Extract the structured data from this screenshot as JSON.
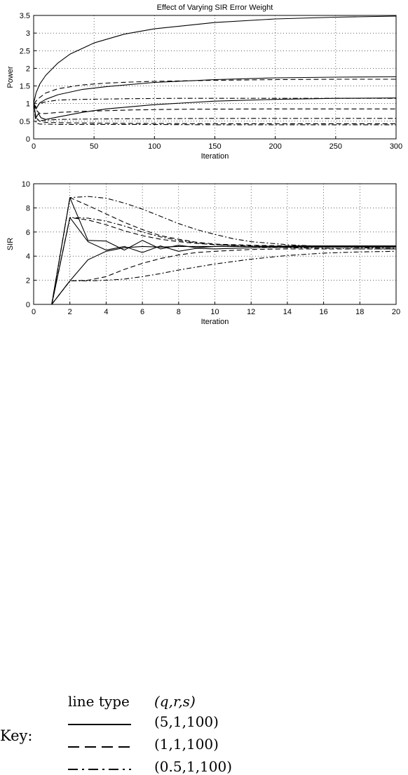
{
  "chart_data": [
    {
      "type": "line",
      "title": "Effect of Varying SIR Error Weight",
      "xlabel": "Iteration",
      "ylabel": "Power",
      "xlim": [
        0,
        300
      ],
      "ylim": [
        0,
        3.5
      ],
      "xticks": [
        "0",
        "50",
        "100",
        "150",
        "200",
        "250",
        "300"
      ],
      "yticks": [
        "0",
        "0.5",
        "1",
        "1.5",
        "2",
        "2.5",
        "3",
        "3.5"
      ],
      "xtick_values": [
        0,
        50,
        100,
        150,
        200,
        250,
        300
      ],
      "ytick_values": [
        0,
        0.5,
        1,
        1.5,
        2,
        2.5,
        3,
        3.5
      ],
      "grid": true,
      "series": [
        {
          "style": "solid",
          "x": [
            0,
            1,
            2,
            5,
            10,
            20,
            30,
            50,
            75,
            100,
            150,
            200,
            250,
            300
          ],
          "y": [
            1.0,
            1.15,
            1.3,
            1.55,
            1.8,
            2.15,
            2.4,
            2.72,
            2.97,
            3.12,
            3.3,
            3.4,
            3.45,
            3.48
          ]
        },
        {
          "style": "solid",
          "x": [
            0,
            2,
            5,
            10,
            20,
            40,
            60,
            100,
            150,
            200,
            250,
            300
          ],
          "y": [
            1.0,
            0.85,
            1.02,
            1.12,
            1.25,
            1.4,
            1.48,
            1.6,
            1.68,
            1.73,
            1.75,
            1.76
          ]
        },
        {
          "style": "solid",
          "x": [
            0,
            2,
            4,
            6,
            10,
            20,
            40,
            60,
            100,
            150,
            200,
            250,
            300
          ],
          "y": [
            1.0,
            0.6,
            0.72,
            0.6,
            0.55,
            0.62,
            0.75,
            0.85,
            0.97,
            1.07,
            1.12,
            1.15,
            1.16
          ]
        },
        {
          "style": "dashed",
          "x": [
            0,
            1,
            3,
            10,
            20,
            40,
            60,
            80,
            100,
            150,
            200,
            250,
            300
          ],
          "y": [
            1.0,
            1.02,
            1.12,
            1.3,
            1.42,
            1.53,
            1.58,
            1.61,
            1.63,
            1.66,
            1.68,
            1.69,
            1.69
          ]
        },
        {
          "style": "dashed",
          "x": [
            0,
            2,
            5,
            10,
            20,
            40,
            80,
            120,
            200,
            300
          ],
          "y": [
            1.0,
            0.82,
            0.72,
            0.72,
            0.75,
            0.78,
            0.82,
            0.84,
            0.85,
            0.85
          ]
        },
        {
          "style": "dashed",
          "x": [
            0,
            2,
            5,
            10,
            20,
            40,
            80,
            150,
            300
          ],
          "y": [
            1.0,
            0.6,
            0.5,
            0.47,
            0.46,
            0.45,
            0.44,
            0.43,
            0.43
          ]
        },
        {
          "style": "dashdot",
          "x": [
            0,
            2,
            5,
            10,
            20,
            40,
            80,
            120,
            200,
            300
          ],
          "y": [
            1.0,
            0.9,
            1.0,
            1.05,
            1.1,
            1.12,
            1.14,
            1.15,
            1.15,
            1.15
          ]
        },
        {
          "style": "dashdot",
          "x": [
            0,
            2,
            5,
            10,
            20,
            40,
            80,
            150,
            300
          ],
          "y": [
            1.0,
            0.55,
            0.52,
            0.53,
            0.55,
            0.56,
            0.57,
            0.58,
            0.58
          ]
        },
        {
          "style": "dashdot",
          "x": [
            0,
            2,
            5,
            10,
            20,
            40,
            80,
            150,
            300
          ],
          "y": [
            1.0,
            0.45,
            0.42,
            0.42,
            0.41,
            0.41,
            0.41,
            0.4,
            0.4
          ]
        }
      ]
    },
    {
      "type": "line",
      "title": "",
      "xlabel": "Iteration",
      "ylabel": "SIR",
      "xlim": [
        0,
        20
      ],
      "ylim": [
        0,
        10
      ],
      "xticks": [
        "0",
        "2",
        "4",
        "6",
        "8",
        "10",
        "12",
        "14",
        "16",
        "18",
        "20"
      ],
      "yticks": [
        "0",
        "2",
        "4",
        "6",
        "8",
        "10"
      ],
      "xtick_values": [
        0,
        2,
        4,
        6,
        8,
        10,
        12,
        14,
        16,
        18,
        20
      ],
      "ytick_values": [
        0,
        2,
        4,
        6,
        8,
        10
      ],
      "grid": true,
      "series": [
        {
          "style": "solid",
          "x": [
            1,
            2,
            3,
            4,
            5,
            6,
            7,
            8,
            9,
            10,
            12,
            15,
            20
          ],
          "y": [
            0,
            8.85,
            5.3,
            5.25,
            4.5,
            5.3,
            4.6,
            4.9,
            4.7,
            4.8,
            4.8,
            4.85,
            4.85
          ]
        },
        {
          "style": "solid",
          "x": [
            1,
            2,
            3,
            4,
            5,
            6,
            7,
            8,
            9,
            10,
            12,
            15,
            20
          ],
          "y": [
            0,
            7.2,
            5.2,
            4.5,
            4.8,
            4.3,
            4.85,
            4.4,
            4.65,
            4.6,
            4.7,
            4.75,
            4.75
          ]
        },
        {
          "style": "solid",
          "x": [
            1,
            2,
            3,
            4,
            5,
            6,
            7,
            8,
            10,
            12,
            15,
            20
          ],
          "y": [
            0,
            1.95,
            3.7,
            4.4,
            4.7,
            4.8,
            4.75,
            4.8,
            4.8,
            4.8,
            4.8,
            4.8
          ]
        },
        {
          "style": "dashed",
          "x": [
            1,
            2,
            3,
            4,
            5,
            6,
            7,
            8,
            9,
            10,
            12,
            14,
            16,
            18,
            20
          ],
          "y": [
            0,
            8.85,
            8.2,
            7.5,
            6.8,
            6.2,
            5.7,
            5.4,
            5.15,
            5.0,
            4.9,
            4.85,
            4.85,
            4.85,
            4.85
          ]
        },
        {
          "style": "dashed",
          "x": [
            1,
            2,
            3,
            4,
            5,
            6,
            7,
            8,
            9,
            10,
            12,
            14,
            16,
            18,
            20
          ],
          "y": [
            0,
            7.2,
            7.0,
            6.6,
            6.1,
            5.7,
            5.4,
            5.2,
            5.05,
            4.95,
            4.85,
            4.8,
            4.8,
            4.8,
            4.8
          ]
        },
        {
          "style": "dashed",
          "x": [
            1,
            2,
            3,
            4,
            5,
            6,
            7,
            8,
            9,
            10,
            12,
            14,
            16,
            18,
            20
          ],
          "y": [
            0,
            1.95,
            2.0,
            2.3,
            2.9,
            3.4,
            3.8,
            4.1,
            4.3,
            4.4,
            4.55,
            4.6,
            4.6,
            4.6,
            4.6
          ]
        },
        {
          "style": "dashdot",
          "x": [
            1,
            2,
            3,
            4,
            5,
            6,
            7,
            8,
            9,
            10,
            11,
            12,
            14,
            16,
            18,
            20
          ],
          "y": [
            0,
            8.85,
            8.95,
            8.8,
            8.4,
            7.9,
            7.3,
            6.7,
            6.2,
            5.8,
            5.45,
            5.2,
            4.95,
            4.8,
            4.7,
            4.65
          ]
        },
        {
          "style": "dashdot",
          "x": [
            1,
            2,
            3,
            4,
            5,
            6,
            7,
            8,
            9,
            10,
            12,
            14,
            16,
            18,
            20
          ],
          "y": [
            0,
            7.2,
            7.15,
            6.9,
            6.5,
            6.0,
            5.6,
            5.3,
            5.1,
            4.95,
            4.8,
            4.7,
            4.65,
            4.6,
            4.6
          ]
        },
        {
          "style": "dashdot",
          "x": [
            1,
            2,
            3,
            4,
            5,
            6,
            7,
            8,
            9,
            10,
            12,
            14,
            16,
            18,
            20
          ],
          "y": [
            0,
            1.95,
            1.95,
            2.0,
            2.1,
            2.3,
            2.55,
            2.85,
            3.1,
            3.35,
            3.75,
            4.05,
            4.25,
            4.35,
            4.4
          ]
        }
      ]
    }
  ],
  "key": {
    "label": "Key:",
    "header_type": "line type",
    "header_params": "(q,r,s)",
    "rows": [
      {
        "style": "solid",
        "params": "(5,1,100)"
      },
      {
        "style": "dashed",
        "params": "(1,1,100)"
      },
      {
        "style": "dashdot",
        "params": "(0.5,1,100)"
      }
    ]
  }
}
